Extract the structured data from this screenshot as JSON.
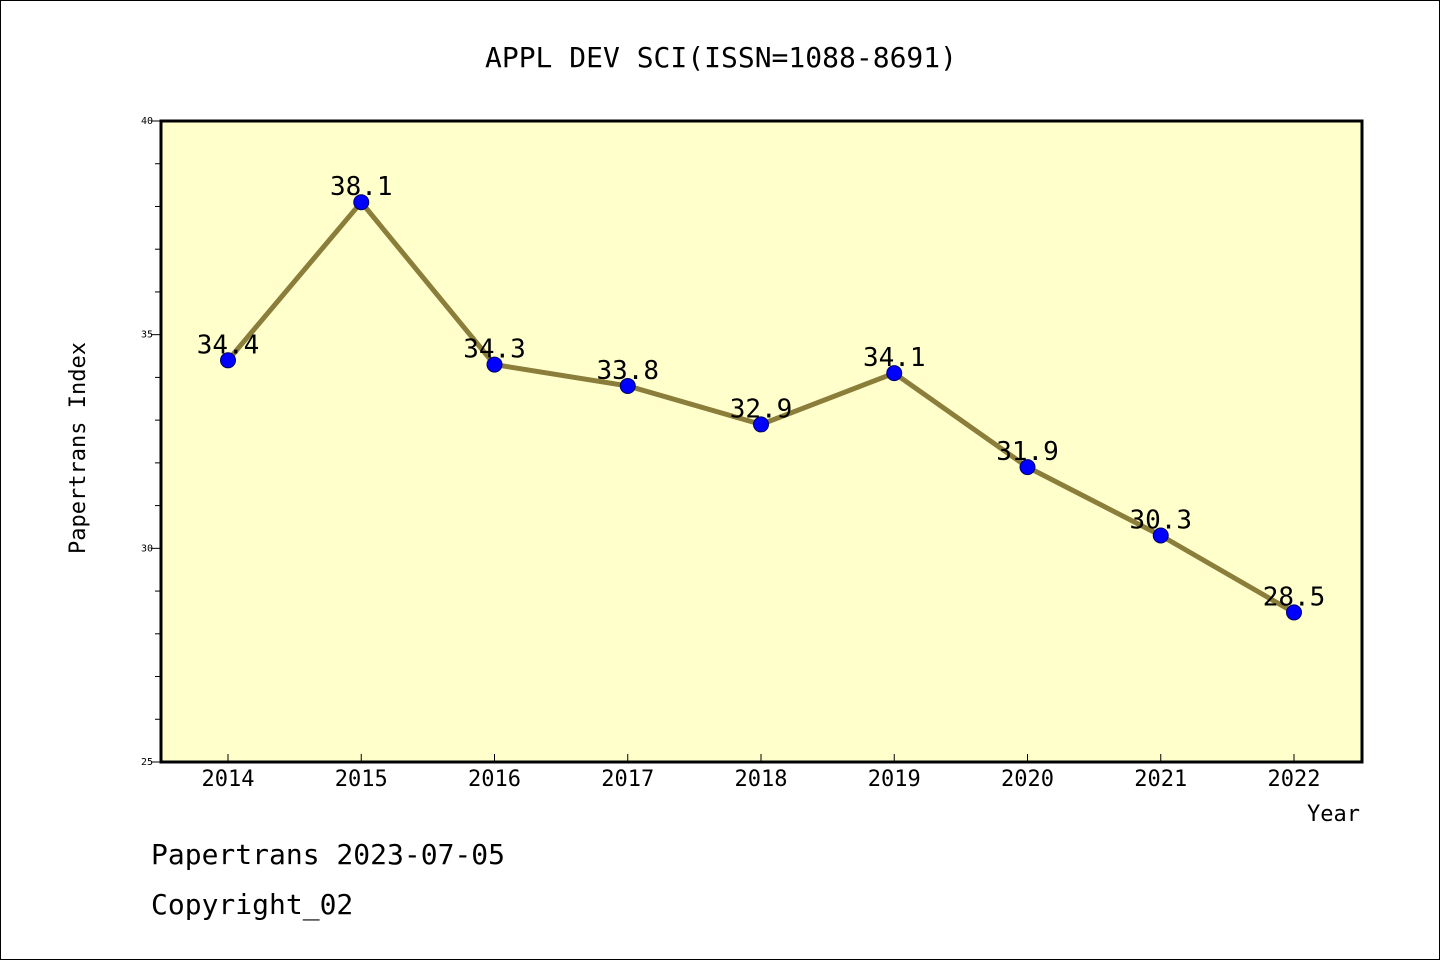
{
  "chart_data": {
    "type": "line",
    "title": "APPL DEV SCI(ISSN=1088-8691)",
    "xlabel": "Year",
    "ylabel": "Papertrans Index",
    "categories": [
      "2014",
      "2015",
      "2016",
      "2017",
      "2018",
      "2019",
      "2020",
      "2021",
      "2022"
    ],
    "values": [
      34.4,
      38.1,
      34.3,
      33.8,
      32.9,
      34.1,
      31.9,
      30.3,
      28.5
    ],
    "data_labels": [
      "34.4",
      "38.1",
      "34.3",
      "33.8",
      "32.9",
      "34.1",
      "31.9",
      "30.3",
      "28.5"
    ],
    "ylim": [
      25,
      40
    ],
    "y_ticks": [
      25,
      30,
      35,
      40
    ],
    "y_tick_labels": [
      "25",
      "30",
      "35",
      "40"
    ],
    "grid": false,
    "legend": "none",
    "colors": {
      "plot_background": "#ffffcc",
      "line": "#8b7d3a",
      "marker": "#0000ff",
      "axis": "#000000"
    }
  },
  "footer": {
    "line1": "Papertrans 2023-07-05",
    "line2": "Copyright_02"
  }
}
